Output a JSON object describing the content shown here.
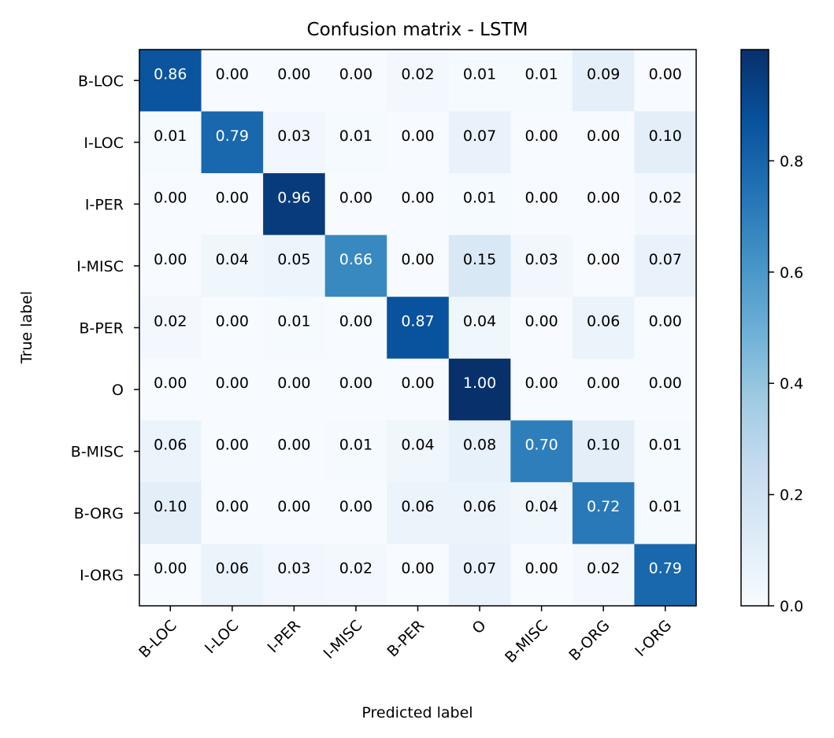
{
  "chart_data": {
    "type": "heatmap",
    "title": "Confusion matrix - LSTM",
    "xlabel": "Predicted label",
    "ylabel": "True label",
    "x_categories": [
      "B-LOC",
      "I-LOC",
      "I-PER",
      "I-MISC",
      "B-PER",
      "O",
      "B-MISC",
      "B-ORG",
      "I-ORG"
    ],
    "y_categories": [
      "B-LOC",
      "I-LOC",
      "I-PER",
      "I-MISC",
      "B-PER",
      "O",
      "B-MISC",
      "B-ORG",
      "I-ORG"
    ],
    "values": [
      [
        0.86,
        0.0,
        0.0,
        0.0,
        0.02,
        0.01,
        0.01,
        0.09,
        0.0
      ],
      [
        0.01,
        0.79,
        0.03,
        0.01,
        0.0,
        0.07,
        0.0,
        0.0,
        0.1
      ],
      [
        0.0,
        0.0,
        0.96,
        0.0,
        0.0,
        0.01,
        0.0,
        0.0,
        0.02
      ],
      [
        0.0,
        0.04,
        0.05,
        0.66,
        0.0,
        0.15,
        0.03,
        0.0,
        0.07
      ],
      [
        0.02,
        0.0,
        0.01,
        0.0,
        0.87,
        0.04,
        0.0,
        0.06,
        0.0
      ],
      [
        0.0,
        0.0,
        0.0,
        0.0,
        0.0,
        1.0,
        0.0,
        0.0,
        0.0
      ],
      [
        0.06,
        0.0,
        0.0,
        0.01,
        0.04,
        0.08,
        0.7,
        0.1,
        0.01
      ],
      [
        0.1,
        0.0,
        0.0,
        0.0,
        0.06,
        0.06,
        0.04,
        0.72,
        0.01
      ],
      [
        0.0,
        0.06,
        0.03,
        0.02,
        0.0,
        0.07,
        0.0,
        0.02,
        0.79
      ]
    ],
    "value_format": "2 decimals",
    "colormap": "Blues",
    "colorbar": {
      "range": [
        0.0,
        1.0
      ],
      "ticks": [
        0.0,
        0.2,
        0.4,
        0.6,
        0.8
      ],
      "tick_labels": [
        "0.0",
        "0.2",
        "0.4",
        "0.6",
        "0.8"
      ]
    },
    "text_color_dark": "#000000",
    "text_color_light": "#ffffff",
    "grid": false
  }
}
